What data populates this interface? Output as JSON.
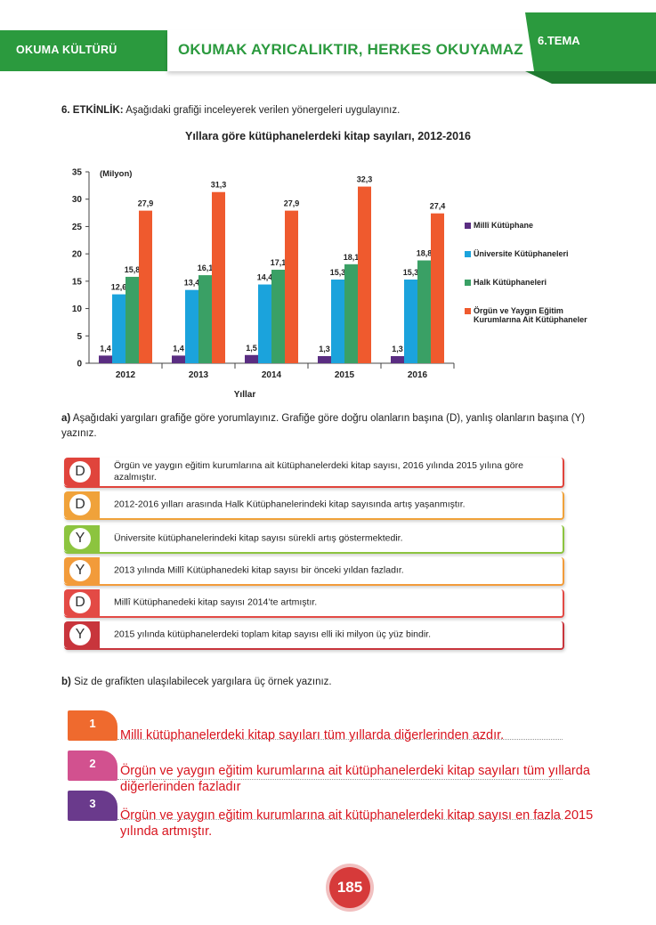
{
  "header": {
    "left_label": "OKUMA KÜLTÜRÜ",
    "title": "OKUMAK AYRICALIKTIR, HERKES OKUYAMAZ",
    "tema": "6.TEMA",
    "accent_color": "#2b9a3e"
  },
  "activity": {
    "label": "6. ETKİNLİK:",
    "instruction": "Aşağıdaki grafiği inceleyerek verilen yönergeleri uygulayınız."
  },
  "chart_data": {
    "type": "bar",
    "title": "Yıllara göre kütüphanelerdeki kitap sayıları, 2012-2016",
    "ylabel": "(Milyon)",
    "xlabel": "Yıllar",
    "ylim": [
      0,
      35
    ],
    "yticks": [
      0,
      5,
      10,
      15,
      20,
      25,
      30,
      35
    ],
    "categories": [
      "2012",
      "2013",
      "2014",
      "2015",
      "2016"
    ],
    "series": [
      {
        "name": "Millî Kütüphane",
        "color": "#5a2d82",
        "values": [
          1.4,
          1.4,
          1.5,
          1.3,
          1.3
        ],
        "labels": [
          "1,4",
          "1,4",
          "1,5",
          "1,3",
          "1,3"
        ]
      },
      {
        "name": "Üniversite Kütüphaneleri",
        "color": "#1ba3dc",
        "values": [
          12.6,
          13.4,
          14.4,
          15.3,
          15.3
        ],
        "labels": [
          "12,6",
          "13,4",
          "14,4",
          "15,3",
          "15,3"
        ]
      },
      {
        "name": "Halk Kütüphaneleri",
        "color": "#3aa065",
        "values": [
          15.8,
          16.1,
          17.1,
          18.1,
          18.8
        ],
        "labels": [
          "15,8",
          "16,1",
          "17,1",
          "18,1",
          "18,8"
        ]
      },
      {
        "name": "Örgün ve Yaygın Eğitim Kurumlarına Ait Kütüphaneler",
        "color": "#ef5a2e",
        "values": [
          27.9,
          31.3,
          27.9,
          32.3,
          27.4
        ],
        "labels": [
          "27,9",
          "31,3",
          "27,9",
          "32,3",
          "27,4"
        ]
      }
    ],
    "legend_position": "right"
  },
  "part_a": {
    "label": "a)",
    "instruction": "Aşağıdaki yargıları grafiğe göre yorumlayınız. Grafiğe göre doğru olanların başına (D), yanlış olanların başına (Y) yazınız.",
    "statements": [
      {
        "answer": "D",
        "text": "Örgün ve yaygın eğitim kurumlarına ait kütüphanelerdeki kitap sayısı, 2016 yılında 2015 yılına göre azalmıştır.",
        "color": "#e0443c"
      },
      {
        "answer": "D",
        "text": "2012-2016 yılları arasında Halk Kütüphanelerindeki kitap sayısında artış yaşanmıştır.",
        "color": "#f0a23a"
      },
      {
        "answer": "Y",
        "text": "Üniversite kütüphanelerindeki kitap sayısı sürekli artış göstermektedir.",
        "color": "#8cc43f"
      },
      {
        "answer": "Y",
        "text": "2013 yılında Millî Kütüphanedeki kitap sayısı bir önceki yıldan fazladır.",
        "color": "#f29b3a"
      },
      {
        "answer": "D",
        "text": "Millî Kütüphanedeki kitap sayısı 2014’te artmıştır.",
        "color": "#e34a45"
      },
      {
        "answer": "Y",
        "text": "2015 yılında kütüphanelerdeki toplam kitap sayısı elli iki milyon üç yüz bindir.",
        "color": "#c8353c"
      }
    ]
  },
  "part_b": {
    "label": "b)",
    "instruction": "Siz de grafikten ulaşılabilecek yargılara üç örnek yazınız.",
    "examples": [
      {
        "number": "1",
        "text": "Milli kütüphanelerdeki kitap sayıları tüm yıllarda diğerlerinden azdır.",
        "color": "#ef6a2e"
      },
      {
        "number": "2",
        "text": "Örgün ve yaygın eğitim kurumlarına ait kütüphanelerdeki kitap sayıları tüm yıllarda diğerlerinden fazladır",
        "color": "#d2518f"
      },
      {
        "number": "3",
        "text": "Örgün ve yaygın eğitim kurumlarına ait kütüphanelerdeki kitap sayısı en fazla 2015 yılında artmıştır.",
        "color": "#6a3a8c"
      }
    ]
  },
  "page_number": "185"
}
